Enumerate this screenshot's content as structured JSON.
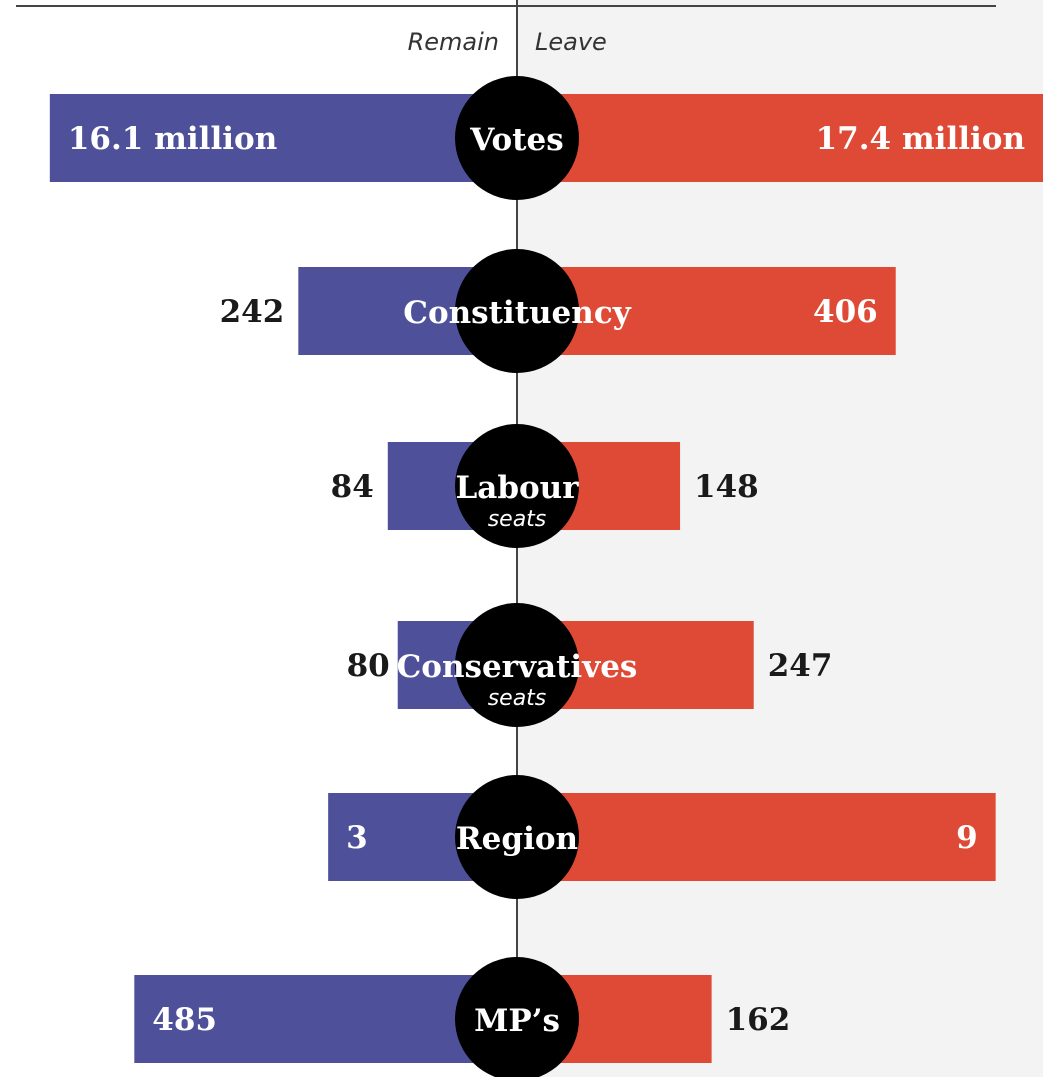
{
  "chart_data": {
    "type": "bar",
    "layout": "diverging",
    "side_labels": {
      "left": "Remain",
      "right": "Leave"
    },
    "colors": {
      "left": "#4e519a",
      "right": "#de4a35",
      "circle": "#000000",
      "right_background": "#f3f3f3",
      "axis_line": "#444444",
      "label_dark": "#1a1a1a",
      "label_light": "#ffffff"
    },
    "categories": [
      {
        "label": "Votes",
        "sub": ""
      },
      {
        "label": "Constituency",
        "sub": ""
      },
      {
        "label": "Labour",
        "sub": "seats"
      },
      {
        "label": "Conservatives",
        "sub": "seats"
      },
      {
        "label": "Region",
        "sub": ""
      },
      {
        "label": "MP’s",
        "sub": ""
      }
    ],
    "series": [
      {
        "name": "Remain",
        "values": [
          16.1,
          242,
          84,
          80,
          3,
          485
        ],
        "value_labels": [
          "16.1 million",
          "242",
          "84",
          "80",
          "3",
          "485"
        ]
      },
      {
        "name": "Leave",
        "values": [
          17.4,
          406,
          148,
          247,
          9,
          162
        ],
        "value_labels": [
          "17.4 million",
          "406",
          "148",
          "247",
          "9",
          "162"
        ]
      }
    ],
    "row_shares": [
      {
        "left": 0.94,
        "right": 1.0
      },
      {
        "left": 0.44,
        "right": 0.72
      },
      {
        "left": 0.26,
        "right": 0.31
      },
      {
        "left": 0.24,
        "right": 0.45
      },
      {
        "left": 0.38,
        "right": 0.91
      },
      {
        "left": 0.77,
        "right": 0.37
      }
    ],
    "value_label_position": [
      "inside",
      "outside",
      "outside",
      "outside",
      "inside",
      "inside-left-outside-right"
    ]
  }
}
